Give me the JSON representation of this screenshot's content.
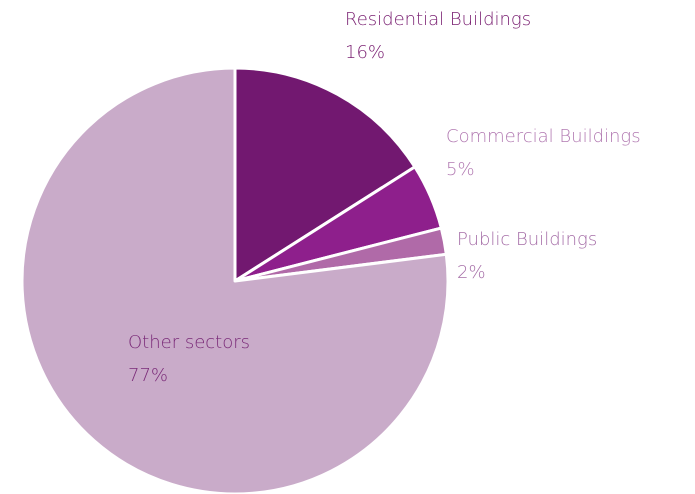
{
  "chart_data": {
    "type": "pie",
    "categories": [
      "Residential Buildings",
      "Commercial Buildings",
      "Public Buildings",
      "Other sectors"
    ],
    "values": [
      16,
      5,
      2,
      77
    ],
    "value_labels": [
      "16%",
      "5%",
      "2%",
      "77%"
    ],
    "colors": [
      "#721870",
      "#8e1f8c",
      "#b06aa8",
      "#c9abc9"
    ],
    "start_angle": 90,
    "direction": "clockwise"
  }
}
